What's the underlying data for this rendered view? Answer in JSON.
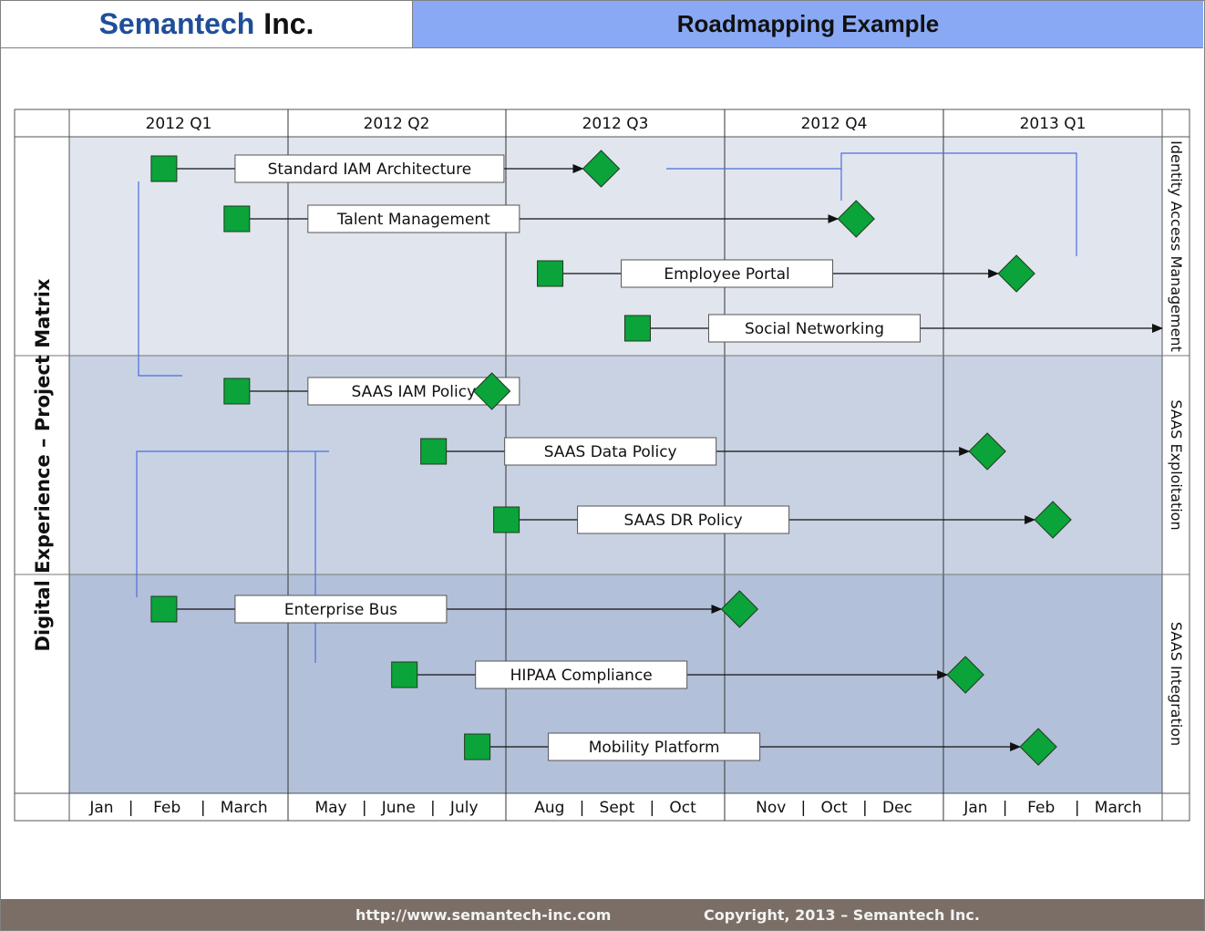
{
  "header": {
    "company_blue": "Semantech",
    "company_black": "Inc.",
    "title": "Roadmapping Example"
  },
  "matrix": {
    "vertical_title": "Digital Experience – Project Matrix",
    "quarters": [
      "2012 Q1",
      "2012 Q2",
      "2012 Q3",
      "2012 Q4",
      "2013 Q1"
    ],
    "month_rows": [
      "Jan   |    Feb    |   March",
      "May   |   June   |   July",
      "Aug   |   Sept   |   Oct",
      "Nov   |   Oct   |   Dec",
      "Jan   |    Feb    |   March"
    ],
    "swimlanes": [
      {
        "label": "Identity Access Management",
        "color": "#e1e5ee"
      },
      {
        "label": "SAAS Exploitation",
        "color": "#c9d2e3"
      },
      {
        "label": "SAAS Integration",
        "color": "#b3c0d9"
      }
    ],
    "projects": [
      {
        "name": "Standard IAM Architecture",
        "start_month": 1.3,
        "end_month": 7.3,
        "lane": 0
      },
      {
        "name": "Talent Management",
        "start_month": 2.3,
        "end_month": 10.8,
        "lane": 0
      },
      {
        "name": "Employee Portal",
        "start_month": 6.6,
        "end_month": 13.0,
        "lane": 0
      },
      {
        "name": "Social Networking",
        "start_month": 7.8,
        "end_month": 15.0,
        "lane": 0,
        "open_ended": true
      },
      {
        "name": "SAAS IAM Policy",
        "start_month": 2.3,
        "end_month": 5.8,
        "lane": 1
      },
      {
        "name": "SAAS Data Policy",
        "start_month": 5.0,
        "end_month": 12.6,
        "lane": 1
      },
      {
        "name": "SAAS DR Policy",
        "start_month": 6.0,
        "end_month": 13.5,
        "lane": 1
      },
      {
        "name": "Enterprise Bus",
        "start_month": 1.3,
        "end_month": 9.2,
        "lane": 2
      },
      {
        "name": "HIPAA Compliance",
        "start_month": 4.6,
        "end_month": 12.3,
        "lane": 2
      },
      {
        "name": "Mobility Platform",
        "start_month": 5.6,
        "end_month": 13.3,
        "lane": 2
      }
    ]
  },
  "footer": {
    "url": "http://www.semantech-inc.com",
    "copyright": "Copyright, 2013 – Semantech Inc."
  },
  "colors": {
    "milestone": "#0aa43a",
    "dependency_line": "#4a6fe0"
  }
}
